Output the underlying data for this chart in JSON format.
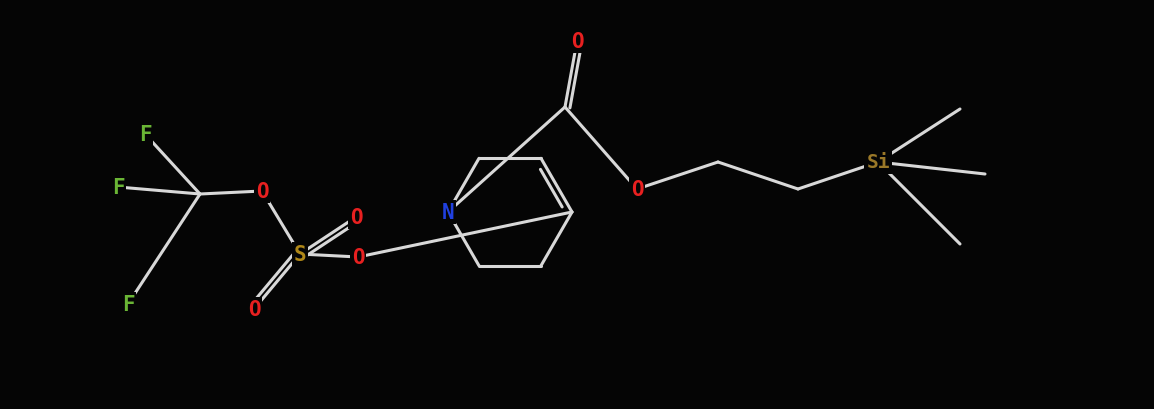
{
  "background_color": "#050505",
  "bond_color": "#d8d8d8",
  "atom_colors": {
    "F": "#6ab535",
    "O": "#e82020",
    "S": "#b08818",
    "N": "#2040e0",
    "Si": "#9a7828",
    "C": "#d8d8d8"
  },
  "bond_width": 2.2,
  "font_size": 15,
  "figsize": [
    11.54,
    4.1
  ],
  "dpi": 100
}
